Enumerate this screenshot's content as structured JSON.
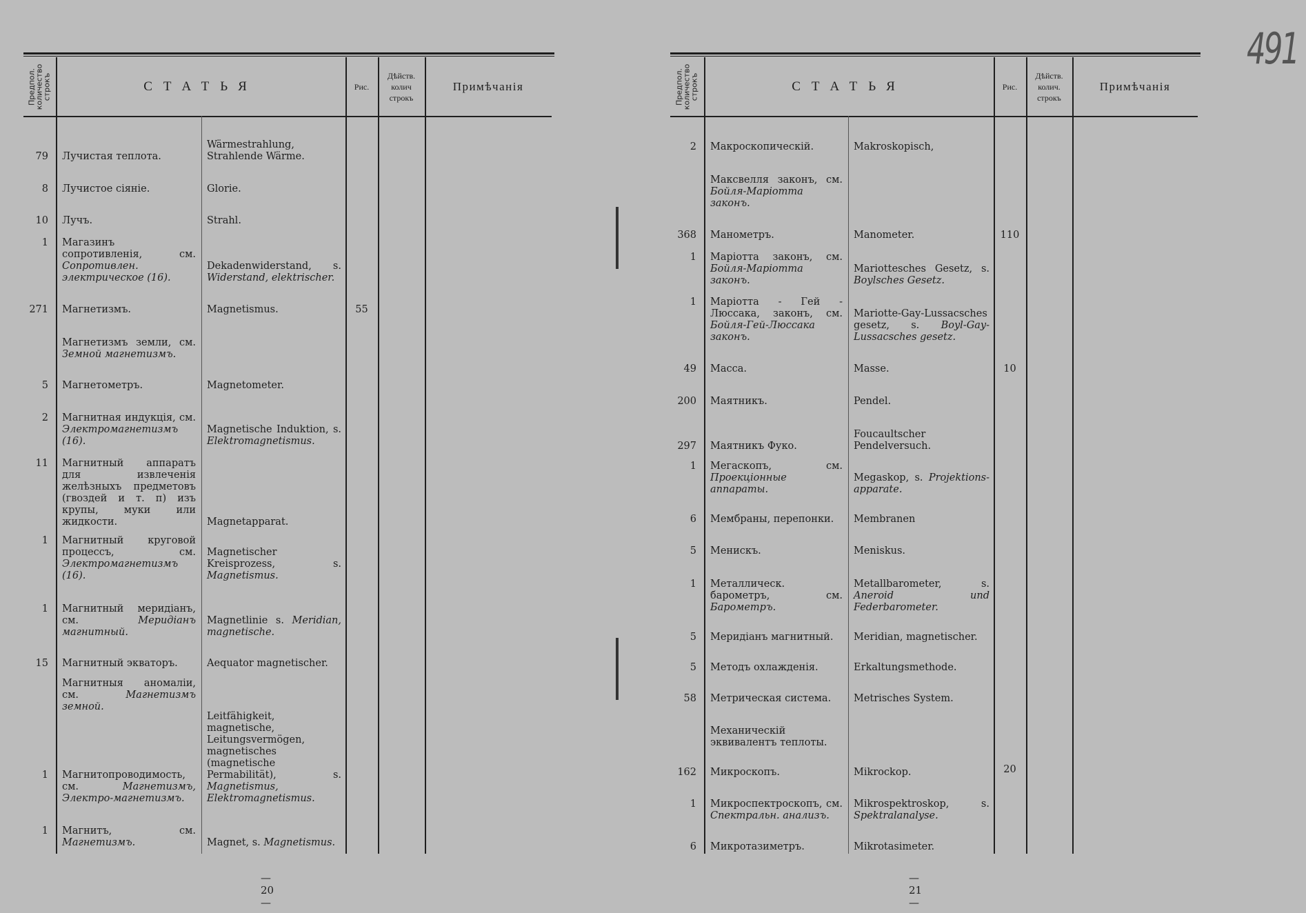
{
  "header": {
    "col_count": "Предпол. количество строкъ",
    "col_article": "СТАТЬЯ",
    "col_fig": "Рис.",
    "col_actual_left": [
      "Дѣйств.",
      "колич",
      "строкъ"
    ],
    "col_actual_right": [
      "Дѣйств.",
      "колич.",
      "строкъ"
    ],
    "col_notes": "Примѣчанія"
  },
  "handwritten_folio": "491",
  "left_page": {
    "page_number": "— 20 —",
    "rows": [
      {
        "num": "79",
        "ru": "Лучистая теплота.",
        "ru_ref": "",
        "de": "Wärmestrahlung, Strahlende Wärme.",
        "de_ref": "",
        "fig": ""
      },
      {
        "num": "8",
        "ru": "Лучистое сіяніе.",
        "ru_ref": "",
        "de": "Glorie.",
        "de_ref": "",
        "fig": ""
      },
      {
        "num": "10",
        "ru": "Лучъ.",
        "ru_ref": "",
        "de": "Strahl.",
        "de_ref": "",
        "fig": ""
      },
      {
        "num": "1",
        "ru": "Магазинъ сопротивленія, см.",
        "ru_ref": "Сопротивлен. электрическое (16).",
        "de": "Dekadenwiderstand, s.",
        "de_ref": "Widerstand, elektrischer.",
        "fig": ""
      },
      {
        "num": "271",
        "ru": "Магнетизмъ.",
        "ru_ref": "",
        "de": "Magnetismus.",
        "de_ref": "",
        "fig": "55"
      },
      {
        "num": "",
        "ru": "Магнетизмъ земли, см.",
        "ru_ref": "Земной магнетизмъ.",
        "de": "",
        "de_ref": "",
        "fig": ""
      },
      {
        "num": "5",
        "ru": "Магнетометръ.",
        "ru_ref": "",
        "de": "Magnetometer.",
        "de_ref": "",
        "fig": ""
      },
      {
        "num": "2",
        "ru": "Магнитная индукція, см.",
        "ru_ref": "Электромагнетизмъ (16).",
        "de": "Magnetische Induktion, s.",
        "de_ref": "Elektromagnetismus.",
        "fig": ""
      },
      {
        "num": "11",
        "ru": "Магнитный аппаратъ для извлеченія желѣзныхъ предметовъ (гвоздей и т. п) изъ крупы, муки или жидкости.",
        "ru_ref": "",
        "de": "Magnetapparat.",
        "de_ref": "",
        "fig": ""
      },
      {
        "num": "1",
        "ru": "Магнитный круговой процессъ, см.",
        "ru_ref": "Электромагнетизмъ (16).",
        "de": "Magnetischer Kreisprozess, s.",
        "de_ref": "Magnetismus.",
        "fig": ""
      },
      {
        "num": "1",
        "ru": "Магнитный меридіанъ, см.",
        "ru_ref": "Меридіанъ магнитный.",
        "de": "Magnetlinie s.",
        "de_ref": "Meridian, magnetische.",
        "fig": ""
      },
      {
        "num": "15",
        "ru": "Магнитный экваторъ.",
        "ru_ref": "",
        "de": "Aequator magnetischer.",
        "de_ref": "",
        "fig": ""
      },
      {
        "num": "",
        "ru": "Магнитныя аномаліи, см.",
        "ru_ref": "Магнетизмъ земной.",
        "de": "",
        "de_ref": "",
        "fig": ""
      },
      {
        "num": "1",
        "ru": "Магнитопроводимость, см.",
        "ru_ref": "Магнетизмъ, Электро-магнетизмъ.",
        "de": "Leitfähigkeit, magnetische, Leitungsvermögen, magnetisches (magnetische Permabilität), s.",
        "de_ref": "Magnetismus, Elektromagnetismus.",
        "fig": ""
      },
      {
        "num": "1",
        "ru": "Магнитъ, см.",
        "ru_ref": "Магнетизмъ.",
        "de": "Magnet, s.",
        "de_ref": "Magnetismus.",
        "fig": ""
      }
    ]
  },
  "right_page": {
    "page_number": "— 21 —",
    "rows": [
      {
        "num": "2",
        "ru": "Макроскопическій.",
        "ru_ref": "",
        "de": "Makroskopisch,",
        "de_ref": "",
        "fig": ""
      },
      {
        "num": "",
        "ru": "Максвелля законъ, см.",
        "ru_ref": "Бойля-Маріотта законъ.",
        "de": "",
        "de_ref": "",
        "fig": ""
      },
      {
        "num": "368",
        "ru": "Манометръ.",
        "ru_ref": "",
        "de": "Manometer.",
        "de_ref": "",
        "fig": "110"
      },
      {
        "num": "1",
        "ru": "Маріотта законъ, см.",
        "ru_ref": "Бойля-Маріотта законъ.",
        "de": "Mariottesches Gesetz, s.",
        "de_ref": "Boylsches Gesetz.",
        "fig": ""
      },
      {
        "num": "1",
        "ru": "Маріотта - Гей - Люссака, законъ, см.",
        "ru_ref": "Бойля-Гей-Люссака законъ.",
        "de": "Mariotte-Gay-Lussacsches gesetz, s.",
        "de_ref": "Boyl-Gay-Lussacsches gesetz.",
        "fig": ""
      },
      {
        "num": "49",
        "ru": "Масса.",
        "ru_ref": "",
        "de": "Masse.",
        "de_ref": "",
        "fig": "10"
      },
      {
        "num": "200",
        "ru": "Маятникъ.",
        "ru_ref": "",
        "de": "Pendel.",
        "de_ref": "",
        "fig": ""
      },
      {
        "num": "297",
        "ru": "Маятникъ Фуко.",
        "ru_ref": "",
        "de": "Foucaultscher Pendelversuch.",
        "de_ref": "",
        "fig": ""
      },
      {
        "num": "1",
        "ru": "Мегаскопъ, см.",
        "ru_ref": "Проекціонные аппараты.",
        "de": "Megaskop, s.",
        "de_ref": "Projektions-apparate.",
        "fig": ""
      },
      {
        "num": "6",
        "ru": "Мембраны, перепонки.",
        "ru_ref": "",
        "de": "Membranen",
        "de_ref": "",
        "fig": ""
      },
      {
        "num": "5",
        "ru": "Менискъ.",
        "ru_ref": "",
        "de": "Meniskus.",
        "de_ref": "",
        "fig": ""
      },
      {
        "num": "1",
        "ru": "Металлическ. барометръ, см.",
        "ru_ref": "Барометръ.",
        "de": "Metallbarometer, s.",
        "de_ref": "Aneroid und Federbarometer.",
        "fig": ""
      },
      {
        "num": "5",
        "ru": "Меридіанъ магнитный.",
        "ru_ref": "",
        "de": "Meridian, magnetischer.",
        "de_ref": "",
        "fig": ""
      },
      {
        "num": "5",
        "ru": "Методъ охлажденія.",
        "ru_ref": "",
        "de": "Erkaltungsmethode.",
        "de_ref": "",
        "fig": ""
      },
      {
        "num": "58",
        "ru": "Метрическая система.",
        "ru_ref": "",
        "de": "Metrisches System.",
        "de_ref": "",
        "fig": ""
      },
      {
        "num": "",
        "ru": "Механическій эквивалентъ теплоты.",
        "ru_ref": "",
        "de": "",
        "de_ref": "",
        "fig": ""
      },
      {
        "num": "162",
        "ru": "Микроскопъ.",
        "ru_ref": "",
        "de": "Mikrockop.",
        "de_ref": "",
        "fig": "20"
      },
      {
        "num": "1",
        "ru": "Микроспектроскопъ, см.",
        "ru_ref": "Спектральн. анализъ.",
        "de": "Mikrospektroskop, s.",
        "de_ref": "Spektralanalyse.",
        "fig": ""
      },
      {
        "num": "6",
        "ru": "Микротазиметръ.",
        "ru_ref": "",
        "de": "Mikrotasimeter.",
        "de_ref": "",
        "fig": ""
      }
    ]
  }
}
